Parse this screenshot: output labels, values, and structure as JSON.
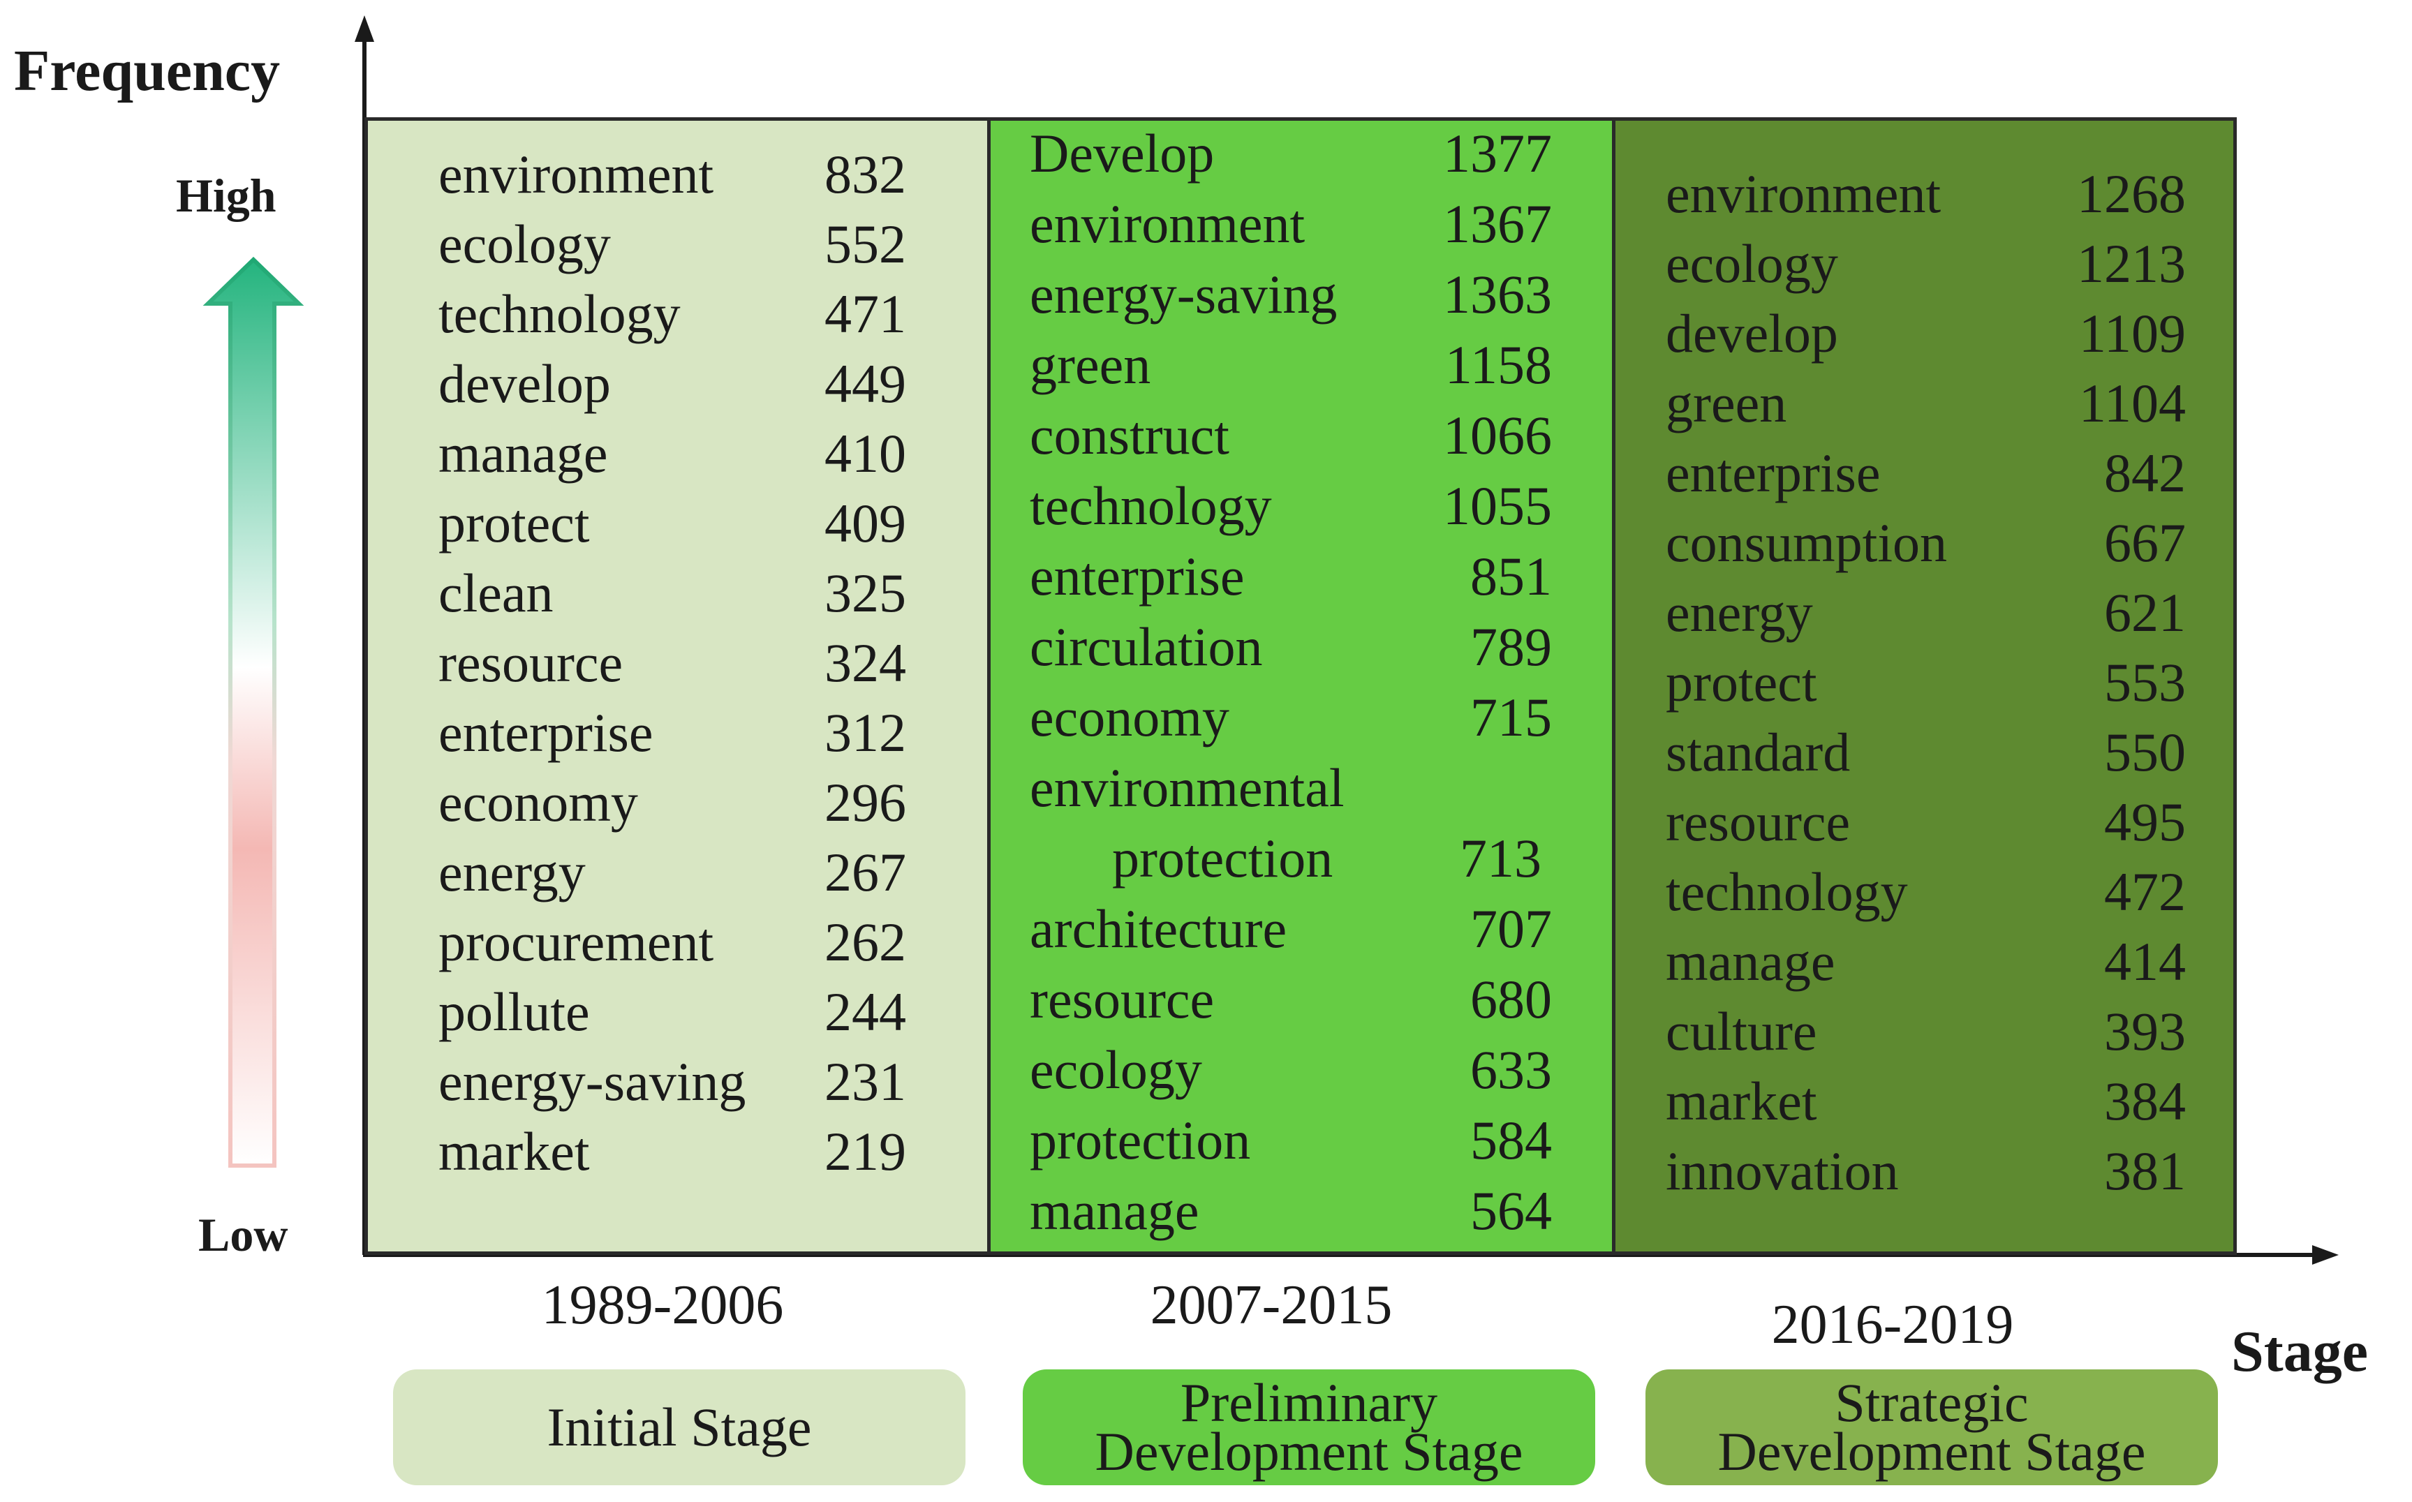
{
  "chart_data": {
    "type": "table",
    "title": "",
    "ylabel": "Frequency",
    "xlabel": "Stage",
    "y_high_label": "High",
    "y_low_label": "Low",
    "panels": [
      {
        "period": "1989-2006",
        "stage_label": [
          "Initial Stage"
        ],
        "color": "#d8e6c3",
        "keywords": [
          {
            "word": "environment",
            "freq": 832
          },
          {
            "word": "ecology",
            "freq": 552
          },
          {
            "word": "technology",
            "freq": 471
          },
          {
            "word": "develop",
            "freq": 449
          },
          {
            "word": "manage",
            "freq": 410
          },
          {
            "word": "protect",
            "freq": 409
          },
          {
            "word": "clean",
            "freq": 325
          },
          {
            "word": "resource",
            "freq": 324
          },
          {
            "word": "enterprise",
            "freq": 312
          },
          {
            "word": "economy",
            "freq": 296
          },
          {
            "word": "energy",
            "freq": 267
          },
          {
            "word": "procurement",
            "freq": 262
          },
          {
            "word": "pollute",
            "freq": 244
          },
          {
            "word": "energy-saving",
            "freq": 231
          },
          {
            "word": "market",
            "freq": 219
          }
        ]
      },
      {
        "period": "2007-2015",
        "stage_label": [
          "Preliminary",
          "Development Stage"
        ],
        "color": "#66cc44",
        "keywords": [
          {
            "word": "Develop",
            "freq": 1377
          },
          {
            "word": "environment",
            "freq": 1367
          },
          {
            "word": "energy-saving",
            "freq": 1363
          },
          {
            "word": "green",
            "freq": 1158
          },
          {
            "word": "construct",
            "freq": 1066
          },
          {
            "word": "technology",
            "freq": 1055
          },
          {
            "word": "enterprise",
            "freq": 851
          },
          {
            "word": "circulation",
            "freq": 789
          },
          {
            "word": "economy",
            "freq": 715
          },
          {
            "word": "environmental protection",
            "freq": 713
          },
          {
            "word": "architecture",
            "freq": 707
          },
          {
            "word": "resource",
            "freq": 680
          },
          {
            "word": "ecology",
            "freq": 633
          },
          {
            "word": "protection",
            "freq": 584
          },
          {
            "word": "manage",
            "freq": 564
          }
        ]
      },
      {
        "period": "2016-2019",
        "stage_label": [
          "Strategic",
          "Development Stage"
        ],
        "color": "#5e8a30",
        "keywords": [
          {
            "word": "environment",
            "freq": 1268
          },
          {
            "word": "ecology",
            "freq": 1213
          },
          {
            "word": "develop",
            "freq": 1109
          },
          {
            "word": "green",
            "freq": 1104
          },
          {
            "word": "enterprise",
            "freq": 842
          },
          {
            "word": "consumption",
            "freq": 667
          },
          {
            "word": "energy",
            "freq": 621
          },
          {
            "word": "protect",
            "freq": 553
          },
          {
            "word": "standard",
            "freq": 550
          },
          {
            "word": "resource",
            "freq": 495
          },
          {
            "word": "technology",
            "freq": 472
          },
          {
            "word": "manage",
            "freq": 414
          },
          {
            "word": "culture",
            "freq": 393
          },
          {
            "word": "market",
            "freq": 384
          },
          {
            "word": "innovation",
            "freq": 381
          }
        ]
      }
    ]
  }
}
